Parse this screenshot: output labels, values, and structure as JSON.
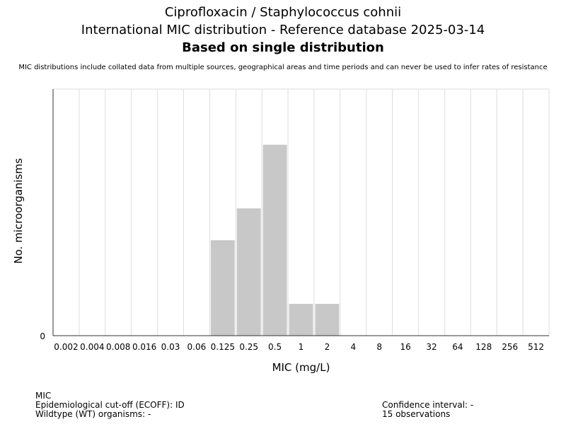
{
  "header": {
    "title_line1": "Ciprofloxacin / Staphylococcus cohnii",
    "title_line2": "International MIC distribution - Reference database 2025-03-14",
    "title_line3": "Based on single distribution",
    "disclaimer": "MIC distributions include collated data from multiple sources, geographical areas and time periods and can never be used to infer rates of resistance"
  },
  "chart_data": {
    "type": "bar",
    "categories": [
      "0.002",
      "0.004",
      "0.008",
      "0.016",
      "0.03",
      "0.06",
      "0.125",
      "0.25",
      "0.5",
      "1",
      "2",
      "4",
      "8",
      "16",
      "32",
      "64",
      "128",
      "256",
      "512"
    ],
    "values": [
      0,
      0,
      0,
      0,
      0,
      0,
      3,
      4,
      6,
      1,
      1,
      0,
      0,
      0,
      0,
      0,
      0,
      0,
      0
    ],
    "xlabel": "MIC (mg/L)",
    "ylabel": "No. microorganisms",
    "y_tick_labels": [
      "0"
    ],
    "ylim": [
      0,
      7.75
    ],
    "grid": "vertical",
    "bar_color": "#c8c8c8",
    "grid_color": "#dddddd"
  },
  "footer": {
    "mic_label": "MIC",
    "ecoff": "Epidemiological cut-off (ECOFF): ID",
    "wildtype": "Wildtype (WT) organisms:  -",
    "confidence": "Confidence interval: -",
    "observations": "15 observations"
  }
}
